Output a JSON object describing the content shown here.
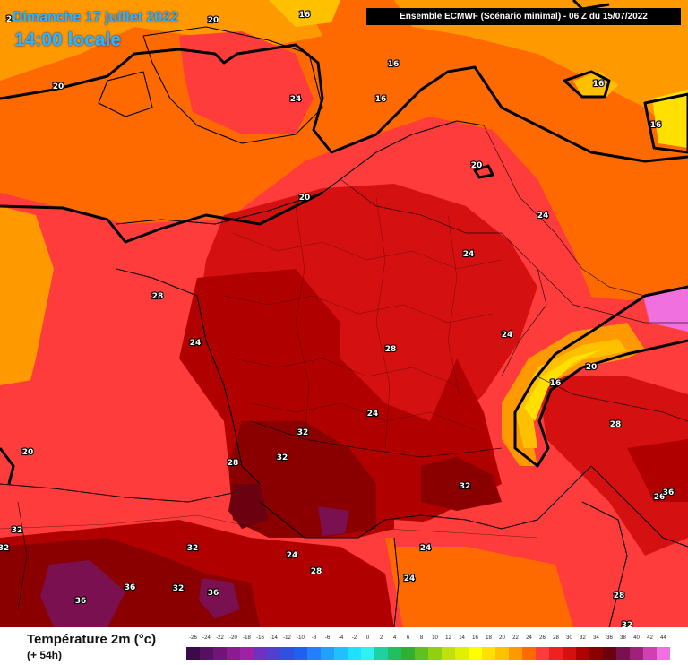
{
  "header": {
    "date": "Dimanche 17 juillet 2022",
    "time": "14:00 locale",
    "run": "Ensemble ECMWF  (Scénario minimal) - 06 Z du 15/07/2022"
  },
  "legend": {
    "title": "Température 2m (°c)",
    "subtitle": "(+ 54h)",
    "ticks": [
      "-26",
      "-24",
      "-22",
      "-20",
      "-18",
      "-16",
      "-14",
      "-12",
      "-10",
      "-8",
      "-6",
      "-4",
      "-2",
      "0",
      "2",
      "4",
      "6",
      "8",
      "10",
      "12",
      "14",
      "16",
      "18",
      "20",
      "22",
      "24",
      "26",
      "28",
      "30",
      "32",
      "34",
      "36",
      "38",
      "40",
      "42",
      "44"
    ],
    "colors": [
      "#3a0a4a",
      "#55105f",
      "#701478",
      "#8c1a90",
      "#a020a8",
      "#7030c0",
      "#5040d0",
      "#3050e0",
      "#2060f0",
      "#2080ff",
      "#20a0ff",
      "#20c0ff",
      "#20e0ff",
      "#30f0f0",
      "#20d0a0",
      "#20c060",
      "#30b030",
      "#60c020",
      "#90d010",
      "#c0e010",
      "#e0f000",
      "#ffff00",
      "#ffe000",
      "#ffc000",
      "#ff9900",
      "#ff6a00",
      "#ff3c3c",
      "#ee2020",
      "#d41010",
      "#b00000",
      "#8a0000",
      "#6a0010",
      "#7a1050",
      "#a0207a",
      "#d040b0",
      "#f070e0"
    ]
  },
  "map_labels": [
    "20",
    "16",
    "20",
    "24",
    "16",
    "16",
    "16",
    "16",
    "20",
    "20",
    "24",
    "24",
    "28",
    "24",
    "28",
    "24",
    "20",
    "16",
    "28",
    "20",
    "28",
    "32",
    "32",
    "24",
    "32",
    "26",
    "36",
    "32",
    "32",
    "32",
    "24",
    "28",
    "24",
    "36",
    "32",
    "36",
    "28",
    "32",
    "2"
  ]
}
